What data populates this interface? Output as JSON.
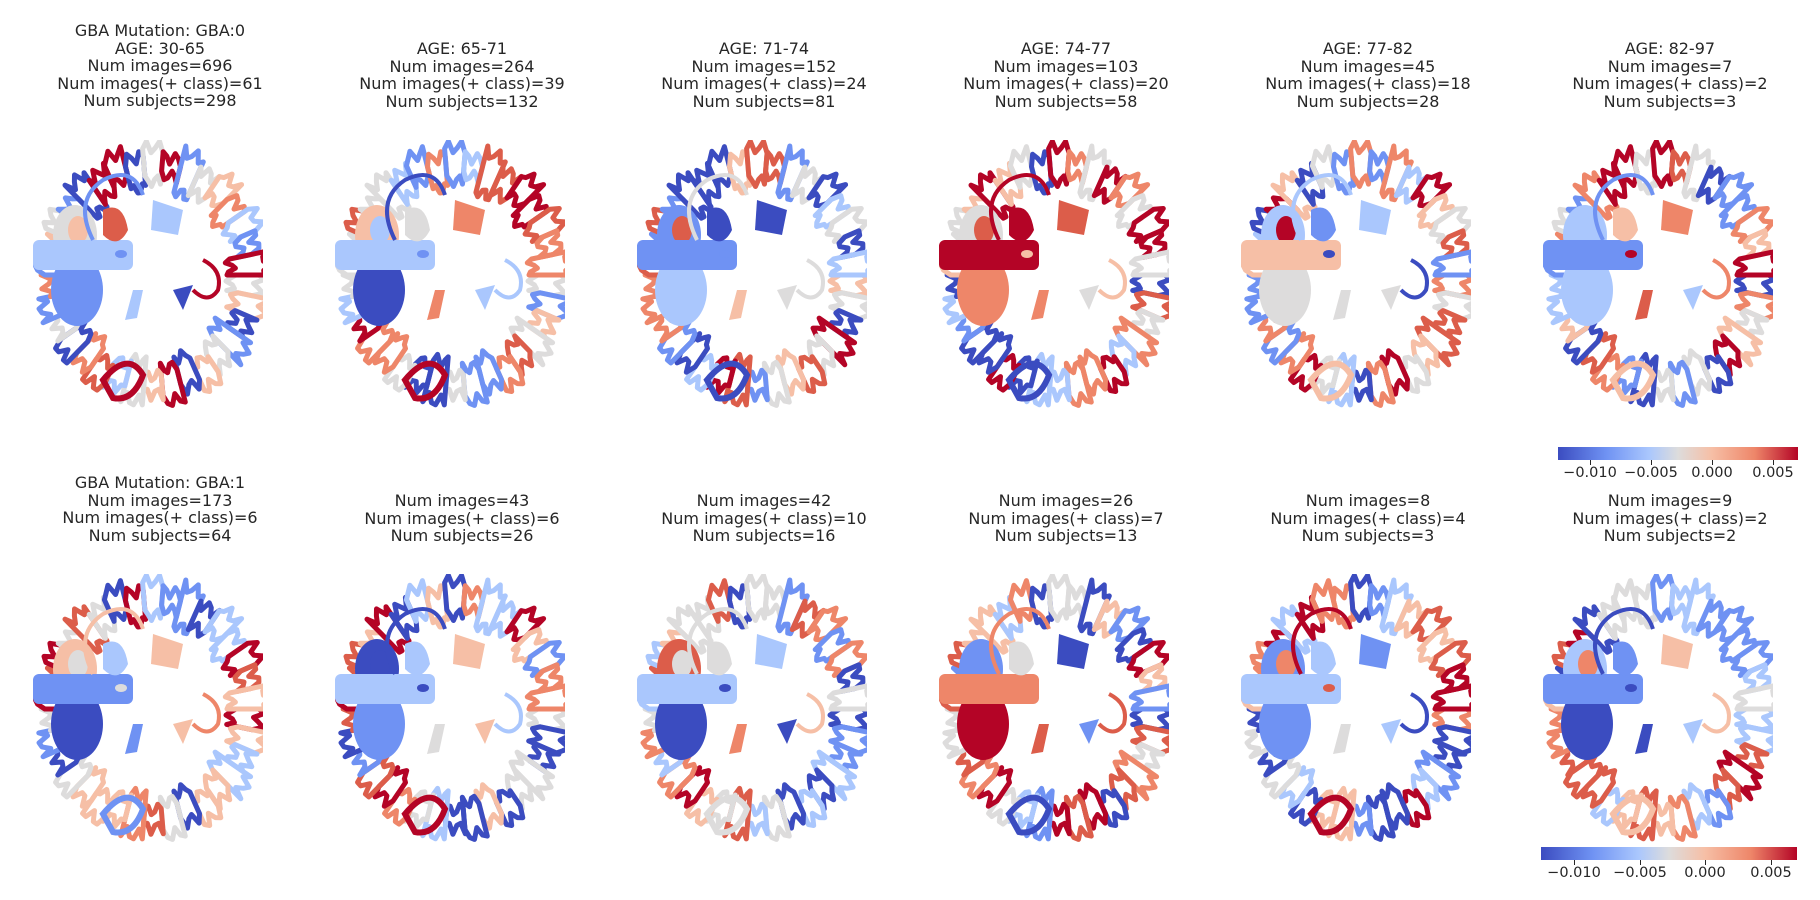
{
  "colorbar_ticks": [
    "−0.010",
    "−0.005",
    "0.000",
    "0.005"
  ],
  "colormap": "coolwarm",
  "colors": {
    "neg_strong": "#3b4cc0",
    "neg": "#6f92f3",
    "neutral": "#dddcdc",
    "pos": "#ee8669",
    "pos_strong": "#b40426"
  },
  "rows": [
    {
      "panels": [
        {
          "title": "GBA Mutation: GBA:0\nAGE: 30-65\nNum images=696\nNum images(+ class)=61\nNum subjects=298"
        },
        {
          "title": "AGE: 65-71\nNum images=264\nNum images(+ class)=39\nNum subjects=132"
        },
        {
          "title": "AGE: 71-74\nNum images=152\nNum images(+ class)=24\nNum subjects=81"
        },
        {
          "title": "AGE: 74-77\nNum images=103\nNum images(+ class)=20\nNum subjects=58"
        },
        {
          "title": "AGE: 77-82\nNum images=45\nNum images(+ class)=18\nNum subjects=28"
        },
        {
          "title": "AGE: 82-97\nNum images=7\nNum images(+ class)=2\nNum subjects=3"
        }
      ]
    },
    {
      "panels": [
        {
          "title": "GBA Mutation: GBA:1\nNum images=173\nNum images(+ class)=6\nNum subjects=64"
        },
        {
          "title": "Num images=43\nNum images(+ class)=6\nNum subjects=26"
        },
        {
          "title": "Num images=42\nNum images(+ class)=10\nNum subjects=16"
        },
        {
          "title": "Num images=26\nNum images(+ class)=7\nNum subjects=13"
        },
        {
          "title": "Num images=8\nNum images(+ class)=4\nNum subjects=3"
        },
        {
          "title": "Num images=9\nNum images(+ class)=2\nNum subjects=2"
        }
      ]
    }
  ]
}
